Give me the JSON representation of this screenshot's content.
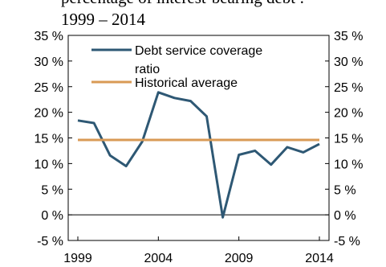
{
  "chart_data": {
    "type": "line",
    "title_line1": "percentage of interest-bearing debt :",
    "title_line2": "1999 – 2014",
    "x_ticks": [
      "1999",
      "2004",
      "2009",
      "2014"
    ],
    "y_ticks_left": [
      "35 %",
      "30 %",
      "25 %",
      "20 %",
      "15 %",
      "10 %",
      "5 %",
      "0 %",
      "-5 %"
    ],
    "y_ticks_right": [
      "35 %",
      "30 %",
      "25 %",
      "20 %",
      "15 %",
      "10 %",
      "5 %",
      "0 %",
      "-5 %"
    ],
    "ylim": [
      -5,
      35
    ],
    "xlim": [
      1999,
      2014
    ],
    "legend_placement": "top-left",
    "series": [
      {
        "name": "Debt service coverage ratio",
        "name_line1": "Debt service coverage",
        "name_line2": "ratio",
        "color": "#2e5874",
        "x": [
          1999,
          2000,
          2001,
          2002,
          2003,
          2004,
          2005,
          2006,
          2007,
          2008,
          2009,
          2010,
          2011,
          2012,
          2013,
          2014
        ],
        "values": [
          18.4,
          17.9,
          11.6,
          9.5,
          14.3,
          23.9,
          22.8,
          22.2,
          19.2,
          -0.5,
          11.7,
          12.5,
          9.8,
          13.2,
          12.2,
          13.8
        ]
      },
      {
        "name": "Historical average",
        "color": "#d99a55",
        "x": [
          1999,
          2014
        ],
        "values": [
          14.6,
          14.6
        ]
      }
    ],
    "zero_line": true
  }
}
